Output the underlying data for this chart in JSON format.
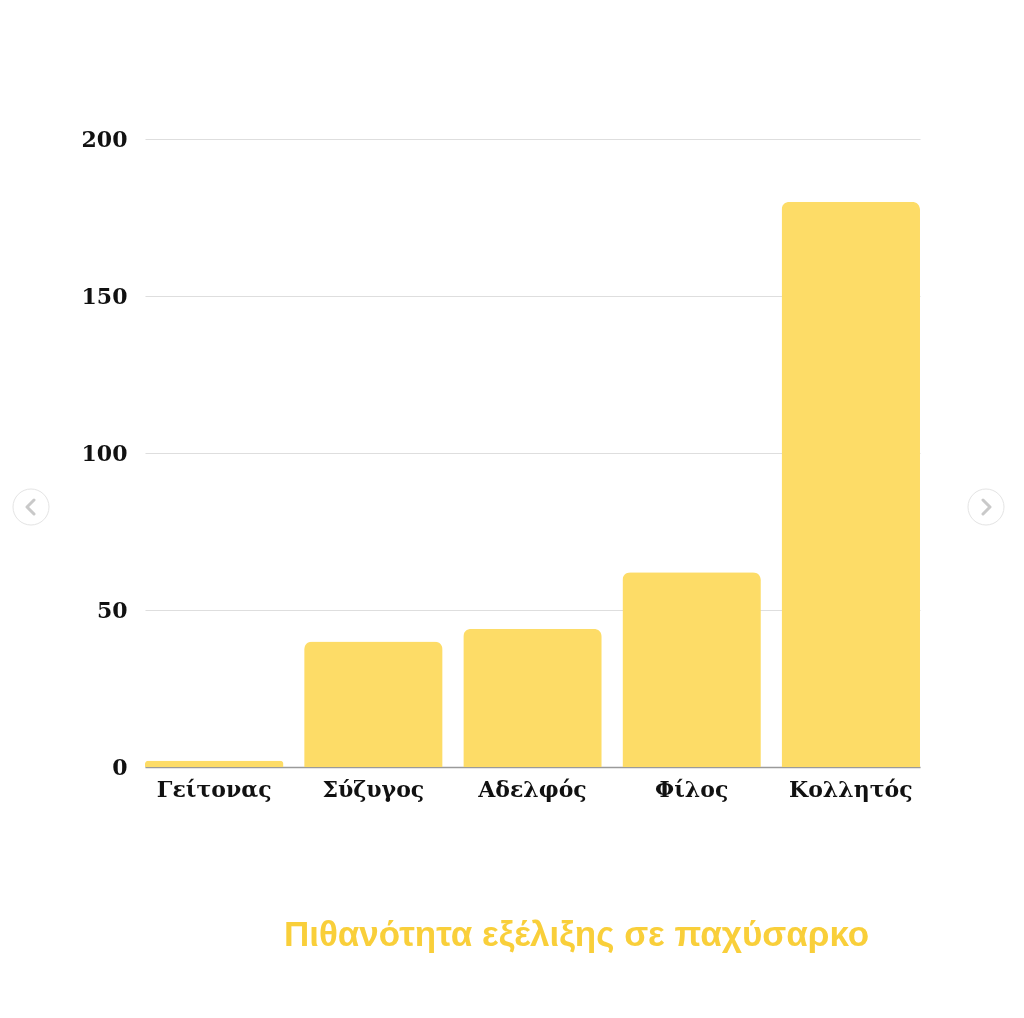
{
  "chart_data": {
    "type": "bar",
    "title": "Πιθανότητα εξέλιξης σε παχύσαρκο",
    "categories": [
      "Γείτονας",
      "Σύζυγος",
      "Αδελφός",
      "Φίλος",
      "Κολλητός"
    ],
    "values": [
      2,
      40,
      44,
      62,
      180
    ],
    "color": "#fddc67",
    "ylim": [
      0,
      200
    ],
    "yticks": [
      0,
      50,
      100,
      150,
      200
    ],
    "grid": "y"
  }
}
